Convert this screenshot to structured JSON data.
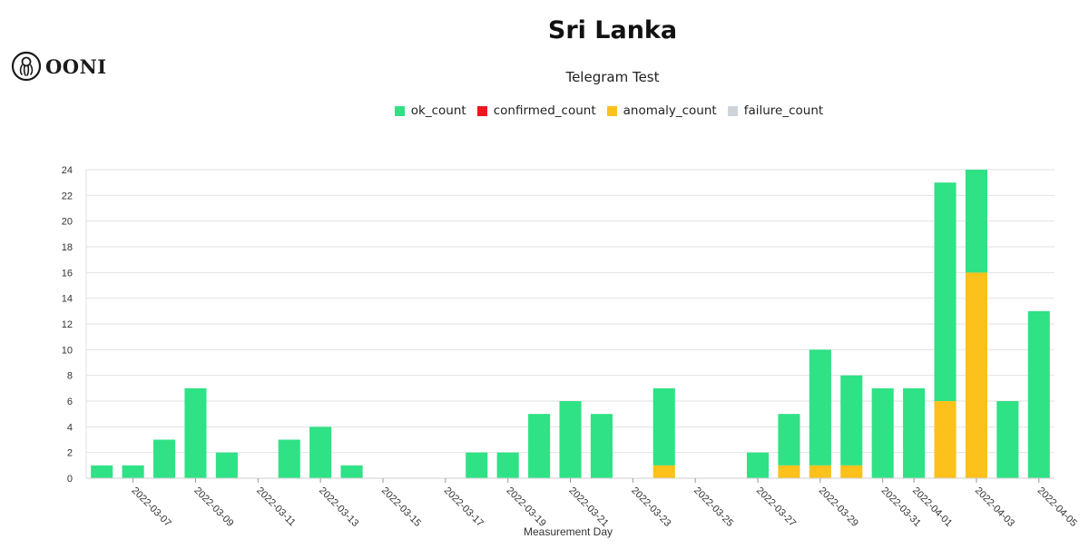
{
  "logo": {
    "text": "OONI"
  },
  "chart_data": {
    "type": "bar",
    "stacked": true,
    "title": "Sri Lanka",
    "subtitle": "Telegram Test",
    "xlabel": "Measurement Day",
    "ylabel": "",
    "ylim": [
      0,
      24
    ],
    "yticks": [
      0,
      2,
      4,
      6,
      8,
      10,
      12,
      14,
      16,
      18,
      20,
      22,
      24
    ],
    "grid": true,
    "legend_position": "top-center",
    "categories": [
      "2022-03-06",
      "2022-03-07",
      "2022-03-08",
      "2022-03-09",
      "2022-03-10",
      "2022-03-11",
      "2022-03-12",
      "2022-03-13",
      "2022-03-14",
      "2022-03-15",
      "2022-03-16",
      "2022-03-17",
      "2022-03-18",
      "2022-03-19",
      "2022-03-20",
      "2022-03-21",
      "2022-03-22",
      "2022-03-23",
      "2022-03-24",
      "2022-03-25",
      "2022-03-26",
      "2022-03-27",
      "2022-03-28",
      "2022-03-29",
      "2022-03-30",
      "2022-03-31",
      "2022-04-01",
      "2022-04-02",
      "2022-04-03",
      "2022-04-04",
      "2022-04-05"
    ],
    "tick_labels": [
      "2022-03-07",
      "2022-03-09",
      "2022-03-11",
      "2022-03-13",
      "2022-03-15",
      "2022-03-17",
      "2022-03-19",
      "2022-03-21",
      "2022-03-23",
      "2022-03-25",
      "2022-03-27",
      "2022-03-29",
      "2022-03-31",
      "2022-04-01",
      "2022-04-03",
      "2022-04-05"
    ],
    "series": [
      {
        "name": "ok_count",
        "color": "#2fe285",
        "values": [
          1,
          1,
          3,
          7,
          2,
          0,
          3,
          4,
          1,
          0,
          0,
          0,
          2,
          2,
          5,
          6,
          5,
          0,
          6,
          0,
          0,
          2,
          4,
          9,
          7,
          7,
          7,
          17,
          8,
          6,
          13
        ]
      },
      {
        "name": "confirmed_count",
        "color": "#f0151e",
        "values": [
          0,
          0,
          0,
          0,
          0,
          0,
          0,
          0,
          0,
          0,
          0,
          0,
          0,
          0,
          0,
          0,
          0,
          0,
          0,
          0,
          0,
          0,
          0,
          0,
          0,
          0,
          0,
          0,
          0,
          0,
          0
        ]
      },
      {
        "name": "anomaly_count",
        "color": "#fcc11b",
        "values": [
          0,
          0,
          0,
          0,
          0,
          0,
          0,
          0,
          0,
          0,
          0,
          0,
          0,
          0,
          0,
          0,
          0,
          0,
          1,
          0,
          0,
          0,
          1,
          1,
          1,
          0,
          0,
          6,
          16,
          0,
          0
        ]
      },
      {
        "name": "failure_count",
        "color": "#ced4da",
        "values": [
          0,
          0,
          0,
          0,
          0,
          0,
          0,
          0,
          0,
          0,
          0,
          0,
          0,
          0,
          0,
          0,
          0,
          0,
          0,
          0,
          0,
          0,
          0,
          0,
          0,
          0,
          0,
          0,
          0,
          0,
          0
        ]
      }
    ]
  }
}
